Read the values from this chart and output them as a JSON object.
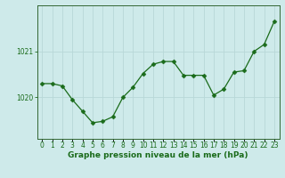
{
  "x": [
    0,
    1,
    2,
    3,
    4,
    5,
    6,
    7,
    8,
    9,
    10,
    11,
    12,
    13,
    14,
    15,
    16,
    17,
    18,
    19,
    20,
    21,
    22,
    23
  ],
  "y": [
    1020.3,
    1020.3,
    1020.25,
    1019.95,
    1019.7,
    1019.45,
    1019.48,
    1019.58,
    1020.0,
    1020.22,
    1020.52,
    1020.72,
    1020.78,
    1020.78,
    1020.48,
    1020.48,
    1020.48,
    1020.05,
    1020.18,
    1020.55,
    1020.58,
    1021.0,
    1021.15,
    1021.65
  ],
  "line_color": "#1a6b1a",
  "marker": "D",
  "marker_size": 2.5,
  "bg_color": "#ceeaea",
  "grid_color": "#b8d8d8",
  "spine_color": "#336633",
  "xlabel": "Graphe pression niveau de la mer (hPa)",
  "yticks": [
    1020,
    1021
  ],
  "ylim": [
    1019.1,
    1022.0
  ],
  "xlim": [
    -0.5,
    23.5
  ],
  "label_fontsize": 6.5,
  "tick_fontsize": 5.5
}
